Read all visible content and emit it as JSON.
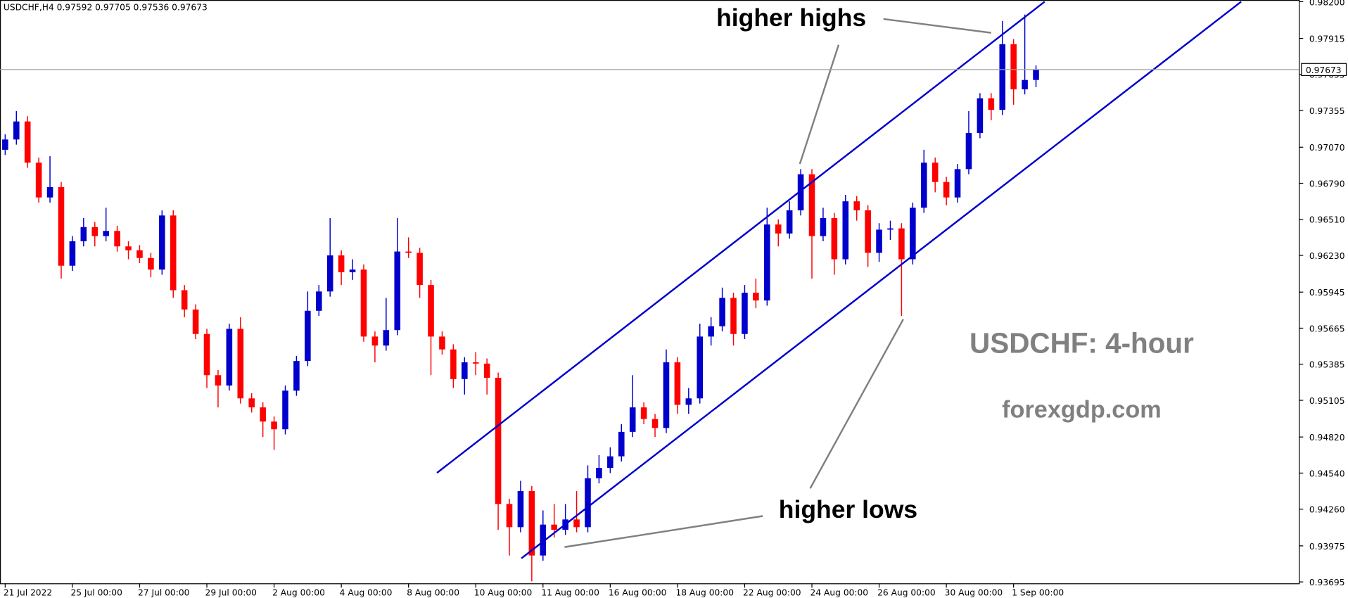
{
  "chart_data": {
    "type": "candlestick",
    "title": "USDCHF,H4  0.97592 0.97705 0.97536 0.97673",
    "annotations": [
      "higher highs",
      "higher lows",
      "USDCHF: 4-hour",
      "forexgdp.com"
    ],
    "up_color": "#0000cd",
    "down_color": "#ff0000",
    "ylim": [
      0.93684,
      0.98213
    ],
    "yticks": [
      {
        "value": 0.982,
        "label": "0.98200"
      },
      0.97915,
      0.97635,
      0.97355,
      {
        "value": 0.9707,
        "label": "0.97070"
      },
      {
        "value": 0.9679,
        "label": "0.96790"
      },
      {
        "value": 0.9651,
        "label": "0.96510"
      },
      {
        "value": 0.9623,
        "label": "0.96230"
      },
      0.95945,
      0.95665,
      0.95385,
      0.95105,
      {
        "value": 0.9482,
        "label": "0.94820"
      },
      {
        "value": 0.9454,
        "label": "0.94540"
      },
      {
        "value": 0.9426,
        "label": "0.94260"
      },
      0.93975,
      0.93695
    ],
    "xticks": [
      {
        "value": 0,
        "label": "21 Jul 2022"
      },
      {
        "value": 6,
        "label": "25 Jul 00:00"
      },
      {
        "value": 12,
        "label": "27 Jul 00:00"
      },
      {
        "value": 18,
        "label": "29 Jul 00:00"
      },
      {
        "value": 24,
        "label": "2 Aug 00:00"
      },
      {
        "value": 30,
        "label": "4 Aug 00:00"
      },
      {
        "value": 36,
        "label": "8 Aug 00:00"
      },
      {
        "value": 42,
        "label": "10 Aug 00:00"
      },
      {
        "value": 48,
        "label": "11 Aug 00:00"
      },
      {
        "value": 54,
        "label": "16 Aug 00:00"
      },
      {
        "value": 60,
        "label": "18 Aug 00:00"
      },
      {
        "value": 66,
        "label": "22 Aug 00:00"
      },
      {
        "value": 72,
        "label": "24 Aug 00:00"
      },
      {
        "value": 78,
        "label": "26 Aug 00:00"
      },
      {
        "value": 84,
        "label": "30 Aug 00:00"
      },
      {
        "value": 90,
        "label": "1 Sep 00:00"
      }
    ],
    "price_line": 0.97673,
    "open": [
      0.9705,
      0.9713,
      0.9727,
      0.9695,
      0.9668,
      0.9676,
      0.9615,
      0.9634,
      0.9645,
      0.9638,
      0.9642,
      0.963,
      0.9627,
      0.9621,
      0.9612,
      0.9654,
      0.9596,
      0.9581,
      0.9562,
      0.953,
      0.9522,
      0.9566,
      0.9512,
      0.9505,
      0.9494,
      0.9488,
      0.9518,
      0.9541,
      0.958,
      0.9595,
      0.9623,
      0.961,
      0.9612,
      0.956,
      0.9553,
      0.9565,
      0.9626,
      0.9625,
      0.96,
      0.956,
      0.955,
      0.9527,
      0.954,
      0.9539,
      0.9528,
      0.943,
      0.9412,
      0.944,
      0.939,
      0.9414,
      0.941,
      0.9418,
      0.9412,
      0.945,
      0.9458,
      0.9467,
      0.9486,
      0.9505,
      0.9496,
      0.9489,
      0.954,
      0.9507,
      0.9512,
      0.956,
      0.9568,
      0.959,
      0.9562,
      0.9594,
      0.9588,
      0.9647,
      0.964,
      0.9658,
      0.9686,
      0.9638,
      0.9652,
      0.962,
      0.9665,
      0.9658,
      0.9625,
      0.9643,
      0.9644,
      0.962,
      0.966,
      0.9695,
      0.968,
      0.9668,
      0.969,
      0.9718,
      0.9745,
      0.9736,
      0.9787,
      0.9752,
      0.97592
    ],
    "high": [
      0.9717,
      0.9735,
      0.9731,
      0.9699,
      0.97,
      0.968,
      0.9638,
      0.9652,
      0.9649,
      0.966,
      0.9646,
      0.9634,
      0.9631,
      0.9625,
      0.9658,
      0.9658,
      0.96,
      0.9585,
      0.9566,
      0.9534,
      0.957,
      0.9575,
      0.9516,
      0.9509,
      0.9498,
      0.9522,
      0.9545,
      0.9595,
      0.96,
      0.9652,
      0.9627,
      0.962,
      0.9616,
      0.9564,
      0.959,
      0.9652,
      0.9637,
      0.9629,
      0.9604,
      0.9564,
      0.9554,
      0.9544,
      0.9548,
      0.9543,
      0.9532,
      0.9434,
      0.9448,
      0.9444,
      0.9425,
      0.943,
      0.943,
      0.944,
      0.946,
      0.9468,
      0.9474,
      0.9492,
      0.953,
      0.9509,
      0.95,
      0.955,
      0.9544,
      0.952,
      0.957,
      0.9575,
      0.9598,
      0.9594,
      0.96,
      0.9605,
      0.966,
      0.9651,
      0.9665,
      0.969,
      0.969,
      0.966,
      0.9656,
      0.967,
      0.9669,
      0.9662,
      0.9648,
      0.965,
      0.9648,
      0.9664,
      0.9705,
      0.9699,
      0.9684,
      0.9694,
      0.9735,
      0.9749,
      0.9749,
      0.9805,
      0.9791,
      0.981,
      0.97705
    ],
    "low": [
      0.9701,
      0.9709,
      0.9691,
      0.9664,
      0.9664,
      0.9605,
      0.9611,
      0.963,
      0.963,
      0.9634,
      0.9626,
      0.962,
      0.9617,
      0.9606,
      0.9608,
      0.959,
      0.9575,
      0.9558,
      0.952,
      0.9505,
      0.9518,
      0.9508,
      0.9501,
      0.9482,
      0.9472,
      0.9484,
      0.9514,
      0.9537,
      0.9576,
      0.9591,
      0.96,
      0.9604,
      0.9556,
      0.954,
      0.9549,
      0.9561,
      0.9621,
      0.959,
      0.953,
      0.9546,
      0.952,
      0.9515,
      0.953,
      0.9515,
      0.941,
      0.939,
      0.9408,
      0.937,
      0.9386,
      0.9404,
      0.9406,
      0.9408,
      0.9408,
      0.9446,
      0.9454,
      0.9463,
      0.9482,
      0.9492,
      0.9482,
      0.9485,
      0.95,
      0.95,
      0.9508,
      0.9553,
      0.9564,
      0.9553,
      0.9558,
      0.9582,
      0.9584,
      0.963,
      0.9636,
      0.9654,
      0.9605,
      0.9634,
      0.9608,
      0.9616,
      0.965,
      0.9614,
      0.9618,
      0.9635,
      0.9576,
      0.9616,
      0.9656,
      0.9672,
      0.9662,
      0.9664,
      0.9686,
      0.9714,
      0.9728,
      0.9732,
      0.974,
      0.9748,
      0.97536
    ],
    "close": [
      0.9713,
      0.9727,
      0.9695,
      0.9668,
      0.9676,
      0.9615,
      0.9634,
      0.9645,
      0.9638,
      0.9642,
      0.963,
      0.9627,
      0.9621,
      0.9612,
      0.9654,
      0.9596,
      0.9581,
      0.9562,
      0.953,
      0.9522,
      0.9566,
      0.9512,
      0.9505,
      0.9494,
      0.9488,
      0.9518,
      0.9541,
      0.958,
      0.9595,
      0.9623,
      0.961,
      0.9612,
      0.956,
      0.9553,
      0.9565,
      0.9626,
      0.9625,
      0.96,
      0.956,
      0.955,
      0.9527,
      0.954,
      0.9539,
      0.9528,
      0.943,
      0.9412,
      0.944,
      0.939,
      0.9414,
      0.941,
      0.9418,
      0.9412,
      0.945,
      0.9458,
      0.9467,
      0.9486,
      0.9505,
      0.9496,
      0.9489,
      0.954,
      0.9507,
      0.9512,
      0.956,
      0.9568,
      0.959,
      0.9562,
      0.9594,
      0.9588,
      0.9647,
      0.964,
      0.9658,
      0.9686,
      0.9638,
      0.9652,
      0.962,
      0.9665,
      0.9658,
      0.9625,
      0.9643,
      0.9644,
      0.962,
      0.966,
      0.9695,
      0.968,
      0.9668,
      0.969,
      0.9718,
      0.9745,
      0.9736,
      0.9787,
      0.9752,
      0.97592,
      0.97673
    ]
  }
}
